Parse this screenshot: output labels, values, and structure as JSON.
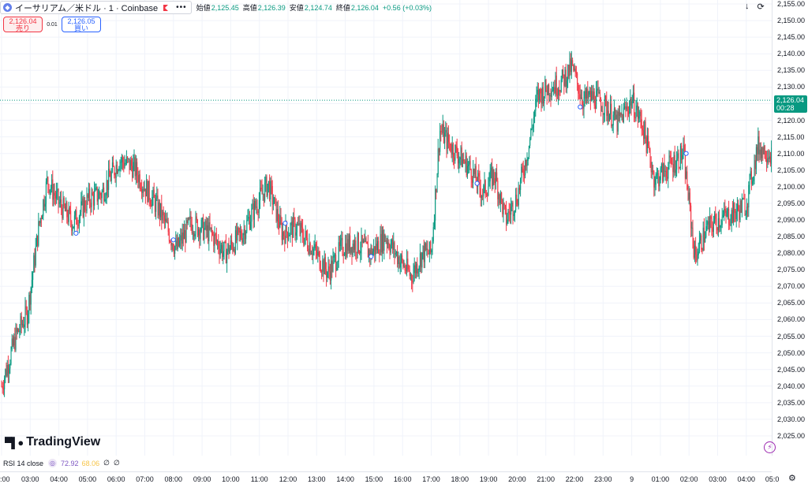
{
  "header": {
    "symbol_logo": "eth-icon",
    "symbol_title": "イーサリアム／米ドル · 1 · Coinbase",
    "more_icon": "more-dots-icon",
    "ohlc": {
      "open_label": "始値",
      "open": "2,125.45",
      "high_label": "高値",
      "high": "2,126.39",
      "low_label": "安値",
      "low": "2,124.74",
      "close_label": "終値",
      "close": "2,126.04",
      "change": "+0.56 (+0.03%)"
    }
  },
  "trade": {
    "sell_price": "2,126.04",
    "sell_label": "売り",
    "spread": "0.01",
    "buy_price": "2,126.05",
    "buy_label": "買い"
  },
  "top_right_icons": [
    "arrow-down-icon",
    "refresh-icon"
  ],
  "price_axis": {
    "ticks": [
      "2,155.00",
      "2,150.00",
      "2,145.00",
      "2,140.00",
      "2,135.00",
      "2,130.00",
      "2,125.00",
      "2,120.00",
      "2,115.00",
      "2,110.00",
      "2,105.00",
      "2,100.00",
      "2,095.00",
      "2,090.00",
      "2,085.00",
      "2,080.00",
      "2,075.00",
      "2,070.00",
      "2,065.00",
      "2,060.00",
      "2,055.00",
      "2,050.00",
      "2,045.00",
      "2,040.00",
      "2,035.00",
      "2,030.00",
      "2,025.00"
    ],
    "last_price": "2,126.04",
    "countdown": "00:28"
  },
  "time_axis": {
    "ticks": [
      ":00",
      "03:00",
      "04:00",
      "05:00",
      "06:00",
      "07:00",
      "08:00",
      "09:00",
      "10:00",
      "11:00",
      "12:00",
      "13:00",
      "14:00",
      "15:00",
      "16:00",
      "17:00",
      "18:00",
      "19:00",
      "20:00",
      "21:00",
      "22:00",
      "23:00",
      "9",
      "01:00",
      "02:00",
      "03:00",
      "04:00",
      "05:0"
    ]
  },
  "chart_data": {
    "type": "candlestick",
    "interval": "1 minute",
    "ylim": [
      2022,
      2158
    ],
    "last_price": 2126.04,
    "x_labels": [
      ":00",
      "03:00",
      "04:00",
      "05:00",
      "06:00",
      "07:00",
      "08:00",
      "09:00",
      "10:00",
      "11:00",
      "12:00",
      "13:00",
      "14:00",
      "15:00",
      "16:00",
      "17:00",
      "18:00",
      "19:00",
      "20:00",
      "21:00",
      "22:00",
      "23:00",
      "9",
      "01:00",
      "02:00",
      "03:00",
      "04:00",
      "05:0"
    ],
    "x_label_hours": [
      2,
      3,
      4,
      5,
      6,
      7,
      8,
      9,
      10,
      11,
      12,
      13,
      14,
      15,
      16,
      17,
      18,
      19,
      20,
      21,
      22,
      23,
      24,
      25,
      26,
      27,
      28,
      29
    ],
    "price_path": [
      {
        "h": 2.0,
        "p": 2040
      },
      {
        "h": 2.5,
        "p": 2055
      },
      {
        "h": 2.9,
        "p": 2062
      },
      {
        "h": 3.3,
        "p": 2088
      },
      {
        "h": 3.6,
        "p": 2102
      },
      {
        "h": 4.0,
        "p": 2095
      },
      {
        "h": 4.5,
        "p": 2089
      },
      {
        "h": 5.0,
        "p": 2096
      },
      {
        "h": 5.5,
        "p": 2098
      },
      {
        "h": 6.1,
        "p": 2108
      },
      {
        "h": 6.6,
        "p": 2106
      },
      {
        "h": 7.0,
        "p": 2100
      },
      {
        "h": 7.5,
        "p": 2093
      },
      {
        "h": 8.1,
        "p": 2081
      },
      {
        "h": 8.6,
        "p": 2089
      },
      {
        "h": 9.3,
        "p": 2086
      },
      {
        "h": 9.8,
        "p": 2080
      },
      {
        "h": 10.4,
        "p": 2086
      },
      {
        "h": 10.8,
        "p": 2093
      },
      {
        "h": 11.3,
        "p": 2101
      },
      {
        "h": 11.8,
        "p": 2086
      },
      {
        "h": 12.3,
        "p": 2088
      },
      {
        "h": 12.9,
        "p": 2081
      },
      {
        "h": 13.4,
        "p": 2074
      },
      {
        "h": 13.9,
        "p": 2082
      },
      {
        "h": 14.4,
        "p": 2083
      },
      {
        "h": 14.9,
        "p": 2080
      },
      {
        "h": 15.4,
        "p": 2085
      },
      {
        "h": 15.9,
        "p": 2078
      },
      {
        "h": 16.3,
        "p": 2073
      },
      {
        "h": 16.7,
        "p": 2080
      },
      {
        "h": 17.0,
        "p": 2080
      },
      {
        "h": 17.3,
        "p": 2117
      },
      {
        "h": 17.7,
        "p": 2112
      },
      {
        "h": 18.4,
        "p": 2105
      },
      {
        "h": 18.8,
        "p": 2098
      },
      {
        "h": 19.2,
        "p": 2104
      },
      {
        "h": 19.6,
        "p": 2090
      },
      {
        "h": 20.0,
        "p": 2097
      },
      {
        "h": 20.4,
        "p": 2112
      },
      {
        "h": 20.7,
        "p": 2127
      },
      {
        "h": 21.1,
        "p": 2130
      },
      {
        "h": 21.5,
        "p": 2131
      },
      {
        "h": 21.9,
        "p": 2136
      },
      {
        "h": 22.3,
        "p": 2126
      },
      {
        "h": 22.7,
        "p": 2127
      },
      {
        "h": 23.1,
        "p": 2124
      },
      {
        "h": 23.5,
        "p": 2119
      },
      {
        "h": 24.0,
        "p": 2126
      },
      {
        "h": 24.4,
        "p": 2118
      },
      {
        "h": 24.8,
        "p": 2102
      },
      {
        "h": 25.3,
        "p": 2106
      },
      {
        "h": 25.8,
        "p": 2110
      },
      {
        "h": 26.0,
        "p": 2095
      },
      {
        "h": 26.2,
        "p": 2079
      },
      {
        "h": 26.6,
        "p": 2087
      },
      {
        "h": 27.0,
        "p": 2090
      },
      {
        "h": 27.6,
        "p": 2092
      },
      {
        "h": 28.0,
        "p": 2095
      },
      {
        "h": 28.4,
        "p": 2112
      },
      {
        "h": 28.9,
        "p": 2110
      },
      {
        "h": 29.2,
        "p": 2115
      },
      {
        "h": 29.45,
        "p": 2126.04
      }
    ],
    "markers": [
      {
        "h": 4.6,
        "p": 2086
      },
      {
        "h": 8.0,
        "p": 2084
      },
      {
        "h": 11.9,
        "p": 2089
      },
      {
        "h": 14.9,
        "p": 2079
      },
      {
        "h": 18.6,
        "p": 2101
      },
      {
        "h": 22.2,
        "p": 2124
      },
      {
        "h": 25.9,
        "p": 2110
      }
    ],
    "colors": {
      "up": "#089981",
      "down": "#f23645",
      "last_price_line": "#089981",
      "grid": "#f0f3fa"
    }
  },
  "watermark": "TradingView",
  "rsi": {
    "label": "RSI 14 close",
    "icon": "rsi-indicator-icon",
    "value": "72.92",
    "ma_value": "68.06",
    "null_1": "∅",
    "null_2": "∅"
  },
  "bolt_icon": "lightning-icon",
  "settings_icon": "settings-gear-icon"
}
